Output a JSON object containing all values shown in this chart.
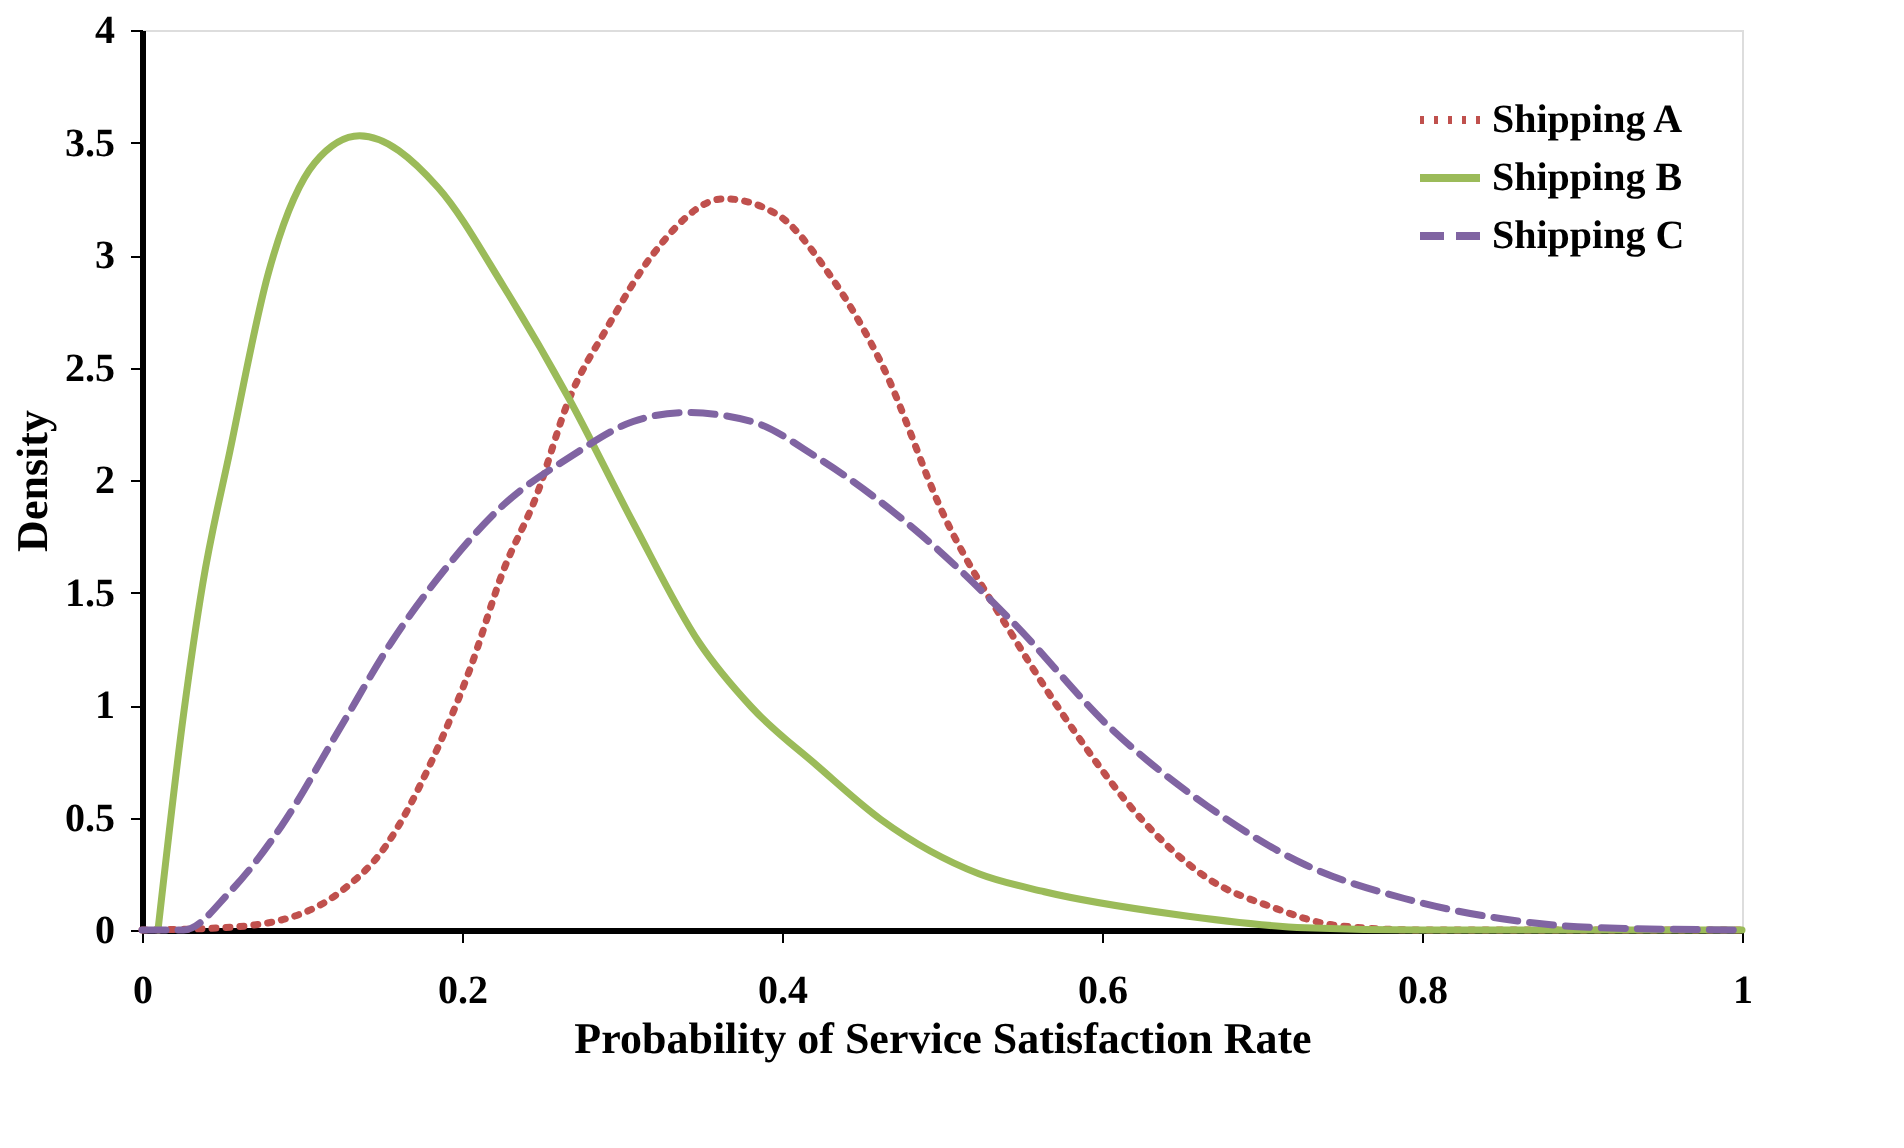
{
  "chart_data": {
    "type": "line",
    "xlabel": "Probability of Service Satisfaction Rate",
    "ylabel": "Density",
    "xlim": [
      0,
      1
    ],
    "ylim": [
      0,
      4
    ],
    "xticks": [
      0,
      0.2,
      0.4,
      0.6,
      0.8,
      1
    ],
    "yticks": [
      0,
      0.5,
      1,
      1.5,
      2,
      2.5,
      3,
      3.5,
      4
    ],
    "grid": false,
    "legend": "top right",
    "series": [
      {
        "name": "Shipping A",
        "color": "#c0504d",
        "line_style": "dotted",
        "x": [
          0,
          0.05,
          0.09,
          0.124,
          0.152,
          0.181,
          0.205,
          0.226,
          0.246,
          0.267,
          0.291,
          0.319,
          0.364,
          0.397,
          0.429,
          0.462,
          0.502,
          0.544,
          0.584,
          0.625,
          0.666,
          0.707,
          0.747,
          0.8,
          1
        ],
        "values": [
          0,
          0.01,
          0.05,
          0.17,
          0.37,
          0.75,
          1.16,
          1.6,
          1.92,
          2.36,
          2.68,
          3.0,
          3.25,
          3.18,
          2.92,
          2.52,
          1.83,
          1.31,
          0.87,
          0.49,
          0.23,
          0.1,
          0.02,
          0,
          0
        ]
      },
      {
        "name": "Shipping B",
        "color": "#9bbb59",
        "line_style": "solid",
        "x": [
          0.01,
          0.026,
          0.038,
          0.055,
          0.079,
          0.108,
          0.136,
          0.185,
          0.226,
          0.267,
          0.307,
          0.348,
          0.381,
          0.422,
          0.462,
          0.523,
          0.564,
          0.645,
          0.727,
          0.8,
          1
        ],
        "values": [
          0,
          0.96,
          1.54,
          2.13,
          2.92,
          3.41,
          3.53,
          3.3,
          2.86,
          2.36,
          1.81,
          1.28,
          0.99,
          0.73,
          0.49,
          0.25,
          0.17,
          0.07,
          0.01,
          0,
          0
        ]
      },
      {
        "name": "Shipping C",
        "color": "#8064a2",
        "line_style": "dashed",
        "x": [
          0,
          0.026,
          0.055,
          0.087,
          0.124,
          0.156,
          0.189,
          0.226,
          0.267,
          0.307,
          0.34,
          0.381,
          0.422,
          0.483,
          0.544,
          0.605,
          0.666,
          0.727,
          0.789,
          0.85,
          0.911,
          1
        ],
        "values": [
          0,
          0,
          0.17,
          0.46,
          0.9,
          1.28,
          1.6,
          1.89,
          2.1,
          2.26,
          2.3,
          2.26,
          2.1,
          1.78,
          1.37,
          0.9,
          0.55,
          0.29,
          0.14,
          0.05,
          0.01,
          0
        ]
      }
    ]
  }
}
